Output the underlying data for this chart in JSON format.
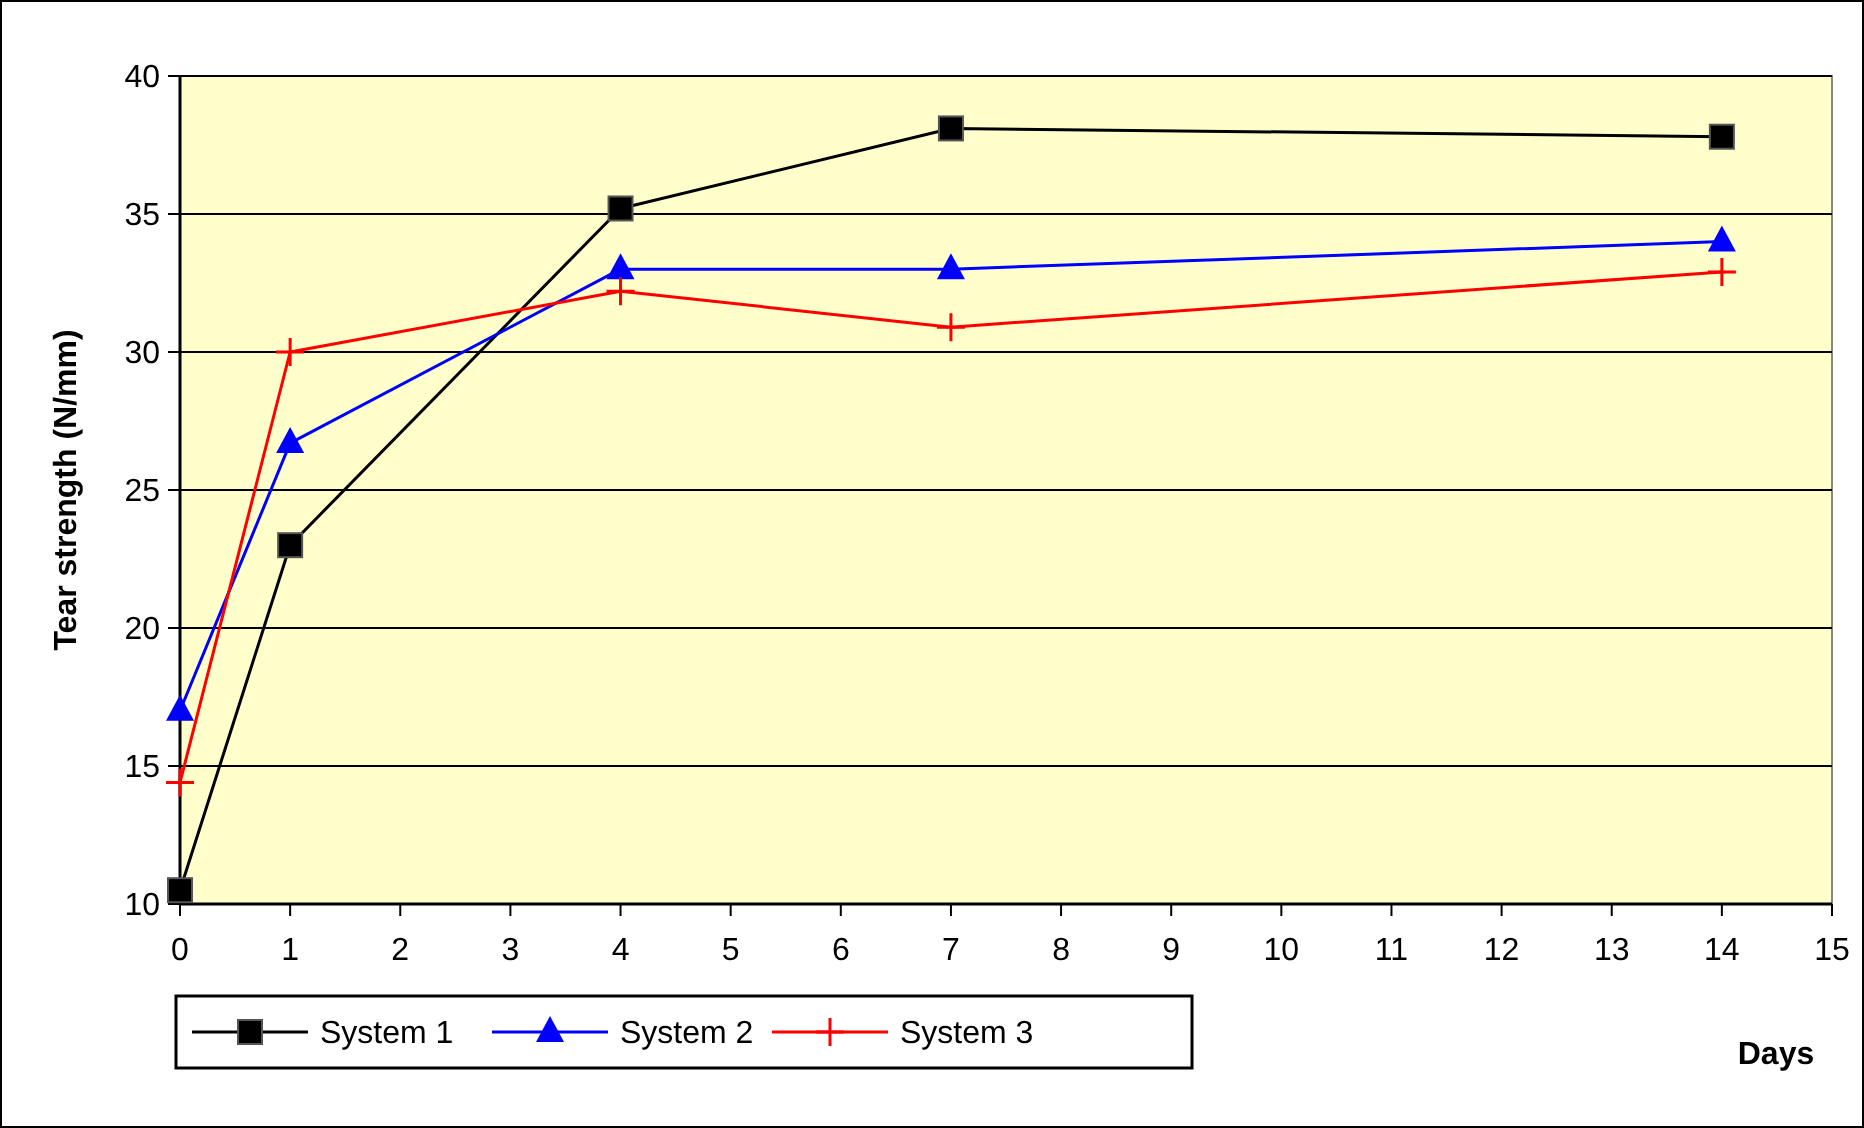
{
  "chart_data": {
    "type": "line",
    "xlabel": "Days",
    "ylabel": "Tear strength (N/mm)",
    "x": [
      0,
      1,
      4,
      7,
      14
    ],
    "series": [
      {
        "name": "System 1",
        "color": "#000000",
        "marker": "square",
        "values": [
          10.5,
          23,
          35.2,
          38.1,
          37.8
        ]
      },
      {
        "name": "System 2",
        "color": "#0000ff",
        "marker": "triangle",
        "values": [
          17,
          26.7,
          33,
          33,
          34
        ]
      },
      {
        "name": "System 3",
        "color": "#ff0000",
        "marker": "cross",
        "values": [
          14.4,
          30,
          32.2,
          30.9,
          32.9
        ]
      }
    ],
    "xlim": [
      0,
      15
    ],
    "xticks": [
      0,
      1,
      2,
      3,
      4,
      5,
      6,
      7,
      8,
      9,
      10,
      11,
      12,
      13,
      14,
      15
    ],
    "ylim": [
      10,
      40
    ],
    "yticks": [
      10,
      15,
      20,
      25,
      30,
      35,
      40
    ],
    "grid": "y",
    "legend": "bottom left"
  }
}
